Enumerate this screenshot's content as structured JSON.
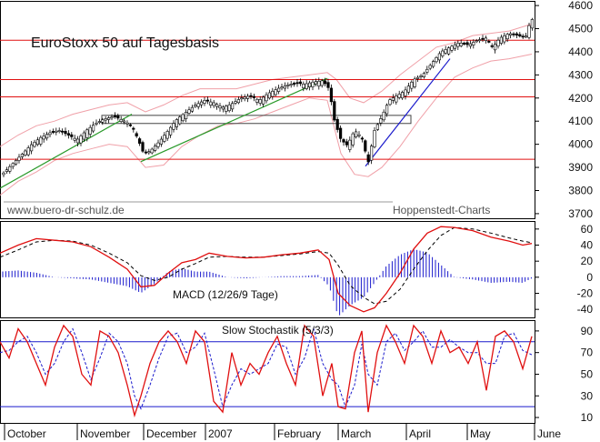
{
  "chart_data": [
    {
      "type": "line",
      "panel": "price",
      "title": "EuroStoxx 50 auf Tagesbasis",
      "source_left": "www.buero-dr-schulz.de",
      "source_right": "Hoppenstedt-Charts",
      "ylim": [
        3680,
        4620
      ],
      "y_ticks": [
        3700,
        3800,
        3900,
        4000,
        4100,
        4200,
        4300,
        4400,
        4500,
        4600
      ],
      "grid": false,
      "horizontal_levels": [
        4450,
        4280,
        4205,
        3935
      ],
      "level_color": "#e01010",
      "trendlines": [
        {
          "color": "#2a9a2a",
          "from": [
            0,
            3810
          ],
          "to": [
            145,
            4130
          ]
        },
        {
          "color": "#2a9a2a",
          "from": [
            155,
            3925
          ],
          "to": [
            360,
            4285
          ]
        },
        {
          "color": "#1a1acc",
          "from": [
            402,
            3905
          ],
          "to": [
            495,
            4370
          ]
        }
      ],
      "box": {
        "x1": 112,
        "x2": 452,
        "y_top": 4125,
        "y_bottom": 4090
      },
      "closes": [
        [
          5,
          3880
        ],
        [
          15,
          3920
        ],
        [
          25,
          3960
        ],
        [
          35,
          4000
        ],
        [
          45,
          4030
        ],
        [
          55,
          4050
        ],
        [
          65,
          4060
        ],
        [
          75,
          4040
        ],
        [
          85,
          4020
        ],
        [
          95,
          4060
        ],
        [
          105,
          4090
        ],
        [
          115,
          4110
        ],
        [
          125,
          4120
        ],
        [
          135,
          4105
        ],
        [
          145,
          4080
        ],
        [
          152,
          4020
        ],
        [
          158,
          3960
        ],
        [
          165,
          3970
        ],
        [
          175,
          4010
        ],
        [
          185,
          4060
        ],
        [
          195,
          4110
        ],
        [
          205,
          4140
        ],
        [
          215,
          4170
        ],
        [
          225,
          4190
        ],
        [
          235,
          4180
        ],
        [
          245,
          4160
        ],
        [
          255,
          4175
        ],
        [
          265,
          4200
        ],
        [
          275,
          4210
        ],
        [
          285,
          4190
        ],
        [
          295,
          4220
        ],
        [
          305,
          4240
        ],
        [
          315,
          4255
        ],
        [
          325,
          4265
        ],
        [
          335,
          4260
        ],
        [
          345,
          4270
        ],
        [
          355,
          4275
        ],
        [
          362,
          4240
        ],
        [
          368,
          4100
        ],
        [
          375,
          4020
        ],
        [
          382,
          3995
        ],
        [
          390,
          4060
        ],
        [
          398,
          4030
        ],
        [
          405,
          3920
        ],
        [
          412,
          4060
        ],
        [
          420,
          4120
        ],
        [
          428,
          4190
        ],
        [
          436,
          4210
        ],
        [
          445,
          4230
        ],
        [
          455,
          4280
        ],
        [
          465,
          4300
        ],
        [
          475,
          4350
        ],
        [
          485,
          4400
        ],
        [
          495,
          4420
        ],
        [
          505,
          4440
        ],
        [
          515,
          4430
        ],
        [
          525,
          4450
        ],
        [
          535,
          4460
        ],
        [
          542,
          4420
        ],
        [
          550,
          4460
        ],
        [
          560,
          4480
        ],
        [
          570,
          4470
        ],
        [
          578,
          4460
        ],
        [
          584,
          4540
        ]
      ],
      "bollinger_upper": [
        [
          0,
          3990
        ],
        [
          20,
          4040
        ],
        [
          40,
          4080
        ],
        [
          60,
          4100
        ],
        [
          80,
          4130
        ],
        [
          100,
          4150
        ],
        [
          120,
          4170
        ],
        [
          140,
          4180
        ],
        [
          160,
          4140
        ],
        [
          180,
          4170
        ],
        [
          200,
          4210
        ],
        [
          220,
          4240
        ],
        [
          240,
          4240
        ],
        [
          260,
          4240
        ],
        [
          280,
          4260
        ],
        [
          300,
          4280
        ],
        [
          320,
          4290
        ],
        [
          340,
          4300
        ],
        [
          360,
          4310
        ],
        [
          370,
          4280
        ],
        [
          385,
          4200
        ],
        [
          400,
          4180
        ],
        [
          420,
          4230
        ],
        [
          440,
          4300
        ],
        [
          460,
          4360
        ],
        [
          480,
          4420
        ],
        [
          500,
          4440
        ],
        [
          520,
          4470
        ],
        [
          540,
          4480
        ],
        [
          560,
          4490
        ],
        [
          585,
          4520
        ]
      ],
      "bollinger_lower": [
        [
          0,
          3780
        ],
        [
          20,
          3840
        ],
        [
          40,
          3880
        ],
        [
          60,
          3930
        ],
        [
          80,
          3960
        ],
        [
          100,
          3980
        ],
        [
          120,
          4000
        ],
        [
          140,
          3990
        ],
        [
          160,
          3900
        ],
        [
          180,
          3910
        ],
        [
          200,
          3990
        ],
        [
          220,
          4040
        ],
        [
          240,
          4080
        ],
        [
          260,
          4090
        ],
        [
          280,
          4110
        ],
        [
          300,
          4140
        ],
        [
          320,
          4170
        ],
        [
          340,
          4200
        ],
        [
          360,
          4190
        ],
        [
          375,
          3960
        ],
        [
          390,
          3870
        ],
        [
          405,
          3860
        ],
        [
          420,
          3900
        ],
        [
          440,
          3990
        ],
        [
          460,
          4100
        ],
        [
          480,
          4200
        ],
        [
          500,
          4290
        ],
        [
          520,
          4330
        ],
        [
          540,
          4360
        ],
        [
          560,
          4370
        ],
        [
          585,
          4390
        ]
      ]
    },
    {
      "type": "line",
      "panel": "macd",
      "title": "MACD (12/26/9 Tage)",
      "ylim": [
        -50,
        70
      ],
      "y_ticks": [
        60,
        40,
        20,
        0,
        -20,
        -40
      ],
      "macd": [
        [
          0,
          30
        ],
        [
          20,
          40
        ],
        [
          40,
          48
        ],
        [
          60,
          46
        ],
        [
          80,
          44
        ],
        [
          100,
          38
        ],
        [
          120,
          25
        ],
        [
          140,
          10
        ],
        [
          155,
          -12
        ],
        [
          170,
          -10
        ],
        [
          185,
          5
        ],
        [
          200,
          18
        ],
        [
          215,
          22
        ],
        [
          230,
          30
        ],
        [
          250,
          26
        ],
        [
          270,
          24
        ],
        [
          290,
          25
        ],
        [
          310,
          28
        ],
        [
          330,
          30
        ],
        [
          350,
          34
        ],
        [
          362,
          22
        ],
        [
          372,
          -20
        ],
        [
          385,
          -35
        ],
        [
          400,
          -43
        ],
        [
          412,
          -38
        ],
        [
          425,
          -20
        ],
        [
          440,
          5
        ],
        [
          455,
          35
        ],
        [
          470,
          55
        ],
        [
          485,
          63
        ],
        [
          500,
          62
        ],
        [
          520,
          58
        ],
        [
          540,
          50
        ],
        [
          560,
          45
        ],
        [
          575,
          40
        ],
        [
          585,
          42
        ]
      ],
      "signal": [
        [
          0,
          25
        ],
        [
          20,
          34
        ],
        [
          40,
          44
        ],
        [
          60,
          46
        ],
        [
          80,
          45
        ],
        [
          100,
          40
        ],
        [
          120,
          30
        ],
        [
          140,
          18
        ],
        [
          155,
          2
        ],
        [
          170,
          -4
        ],
        [
          185,
          0
        ],
        [
          200,
          10
        ],
        [
          215,
          17
        ],
        [
          230,
          25
        ],
        [
          250,
          26
        ],
        [
          270,
          25
        ],
        [
          290,
          25
        ],
        [
          310,
          27
        ],
        [
          330,
          29
        ],
        [
          350,
          32
        ],
        [
          362,
          30
        ],
        [
          372,
          15
        ],
        [
          385,
          -10
        ],
        [
          400,
          -25
        ],
        [
          412,
          -33
        ],
        [
          425,
          -30
        ],
        [
          440,
          -15
        ],
        [
          455,
          10
        ],
        [
          470,
          33
        ],
        [
          485,
          52
        ],
        [
          500,
          62
        ],
        [
          520,
          60
        ],
        [
          540,
          55
        ],
        [
          560,
          49
        ],
        [
          575,
          45
        ],
        [
          585,
          43
        ]
      ]
    },
    {
      "type": "line",
      "panel": "stochastic",
      "title": "Slow Stochastik (5/3/3)",
      "ylim": [
        5,
        100
      ],
      "y_ticks": [
        90,
        70,
        50,
        30,
        10
      ],
      "bands": [
        80,
        20
      ],
      "k": [
        [
          0,
          80
        ],
        [
          10,
          65
        ],
        [
          20,
          92
        ],
        [
          30,
          80
        ],
        [
          40,
          60
        ],
        [
          50,
          40
        ],
        [
          60,
          75
        ],
        [
          70,
          95
        ],
        [
          80,
          85
        ],
        [
          90,
          50
        ],
        [
          100,
          40
        ],
        [
          110,
          90
        ],
        [
          120,
          85
        ],
        [
          130,
          70
        ],
        [
          140,
          40
        ],
        [
          148,
          12
        ],
        [
          155,
          30
        ],
        [
          165,
          60
        ],
        [
          175,
          80
        ],
        [
          185,
          90
        ],
        [
          195,
          80
        ],
        [
          205,
          60
        ],
        [
          215,
          90
        ],
        [
          225,
          80
        ],
        [
          235,
          25
        ],
        [
          245,
          15
        ],
        [
          255,
          70
        ],
        [
          265,
          40
        ],
        [
          275,
          60
        ],
        [
          285,
          50
        ],
        [
          295,
          70
        ],
        [
          305,
          85
        ],
        [
          315,
          60
        ],
        [
          325,
          40
        ],
        [
          335,
          95
        ],
        [
          345,
          85
        ],
        [
          355,
          30
        ],
        [
          365,
          60
        ],
        [
          372,
          20
        ],
        [
          380,
          18
        ],
        [
          390,
          70
        ],
        [
          398,
          90
        ],
        [
          405,
          15
        ],
        [
          415,
          70
        ],
        [
          425,
          95
        ],
        [
          435,
          80
        ],
        [
          445,
          60
        ],
        [
          455,
          95
        ],
        [
          465,
          85
        ],
        [
          475,
          60
        ],
        [
          485,
          90
        ],
        [
          495,
          70
        ],
        [
          505,
          75
        ],
        [
          515,
          60
        ],
        [
          525,
          80
        ],
        [
          535,
          35
        ],
        [
          545,
          85
        ],
        [
          555,
          90
        ],
        [
          565,
          80
        ],
        [
          575,
          55
        ],
        [
          585,
          85
        ]
      ],
      "d": [
        [
          0,
          70
        ],
        [
          10,
          72
        ],
        [
          20,
          80
        ],
        [
          30,
          85
        ],
        [
          40,
          70
        ],
        [
          50,
          50
        ],
        [
          60,
          60
        ],
        [
          70,
          80
        ],
        [
          80,
          92
        ],
        [
          90,
          70
        ],
        [
          100,
          45
        ],
        [
          110,
          65
        ],
        [
          120,
          88
        ],
        [
          130,
          80
        ],
        [
          140,
          60
        ],
        [
          148,
          30
        ],
        [
          155,
          18
        ],
        [
          165,
          40
        ],
        [
          175,
          65
        ],
        [
          185,
          85
        ],
        [
          195,
          88
        ],
        [
          205,
          70
        ],
        [
          215,
          75
        ],
        [
          225,
          88
        ],
        [
          235,
          55
        ],
        [
          245,
          20
        ],
        [
          255,
          40
        ],
        [
          265,
          55
        ],
        [
          275,
          50
        ],
        [
          285,
          55
        ],
        [
          295,
          60
        ],
        [
          305,
          78
        ],
        [
          315,
          75
        ],
        [
          325,
          50
        ],
        [
          335,
          65
        ],
        [
          345,
          92
        ],
        [
          355,
          60
        ],
        [
          365,
          45
        ],
        [
          372,
          40
        ],
        [
          380,
          20
        ],
        [
          390,
          40
        ],
        [
          398,
          78
        ],
        [
          405,
          50
        ],
        [
          415,
          40
        ],
        [
          425,
          80
        ],
        [
          435,
          88
        ],
        [
          445,
          72
        ],
        [
          455,
          80
        ],
        [
          465,
          90
        ],
        [
          475,
          75
        ],
        [
          485,
          75
        ],
        [
          495,
          82
        ],
        [
          505,
          75
        ],
        [
          515,
          70
        ],
        [
          525,
          70
        ],
        [
          535,
          60
        ],
        [
          545,
          60
        ],
        [
          555,
          85
        ],
        [
          565,
          88
        ],
        [
          575,
          72
        ],
        [
          585,
          68
        ]
      ]
    }
  ],
  "x_axis": {
    "months": [
      {
        "label": "October",
        "pos": 5
      },
      {
        "label": "November",
        "pos": 85
      },
      {
        "label": "December",
        "pos": 158
      },
      {
        "label": "2007",
        "pos": 226
      },
      {
        "label": "February",
        "pos": 302
      },
      {
        "label": "March",
        "pos": 372
      },
      {
        "label": "April",
        "pos": 447
      },
      {
        "label": "May",
        "pos": 514
      },
      {
        "label": "June",
        "pos": 588
      }
    ]
  },
  "colors": {
    "red": "#e01010",
    "blue": "#1a1acc",
    "green": "#2a9a2a",
    "bollinger": "#f0a0a8",
    "frame": "#000000"
  }
}
